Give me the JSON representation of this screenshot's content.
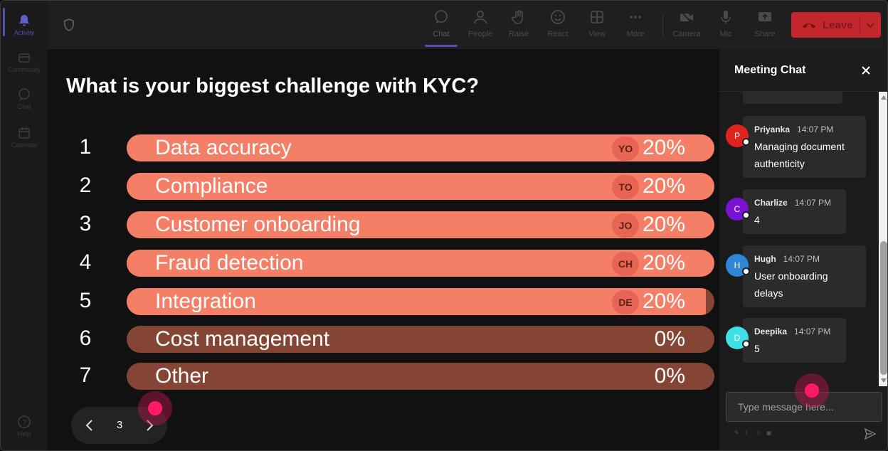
{
  "rail": {
    "items": [
      {
        "label": "Activity",
        "icon": "bell-icon"
      },
      {
        "label": "Community",
        "icon": "community-icon"
      },
      {
        "label": "Chat",
        "icon": "chat-icon"
      },
      {
        "label": "Calendar",
        "icon": "calendar-icon"
      }
    ],
    "help": {
      "label": "Help",
      "icon": "help-icon"
    }
  },
  "toolbar": {
    "buttons": [
      {
        "label": "Chat",
        "icon": "chat-icon"
      },
      {
        "label": "People",
        "icon": "people-icon"
      },
      {
        "label": "Raise",
        "icon": "hand-icon"
      },
      {
        "label": "React",
        "icon": "smiley-icon"
      },
      {
        "label": "View",
        "icon": "grid-icon"
      },
      {
        "label": "More",
        "icon": "more-icon"
      },
      {
        "label": "Camera",
        "icon": "camera-off-icon"
      },
      {
        "label": "Mic",
        "icon": "mic-icon"
      },
      {
        "label": "Share",
        "icon": "share-icon"
      }
    ],
    "leave_label": "Leave"
  },
  "poll": {
    "question": "What is your biggest challenge with KYC?",
    "options": [
      {
        "num": "1",
        "label": "Data accuracy",
        "avatar": "YO",
        "pct": "20%",
        "value": 1.0
      },
      {
        "num": "2",
        "label": "Compliance",
        "avatar": "TO",
        "pct": "20%",
        "value": 1.0
      },
      {
        "num": "3",
        "label": "Customer onboarding",
        "avatar": "JO",
        "pct": "20%",
        "value": 1.0
      },
      {
        "num": "4",
        "label": "Fraud detection",
        "avatar": "CH",
        "pct": "20%",
        "value": 1.0
      },
      {
        "num": "5",
        "label": "Integration",
        "avatar": "DE",
        "pct": "20%",
        "value": 0.985
      },
      {
        "num": "6",
        "label": "Cost management",
        "avatar": "",
        "pct": "0%",
        "value": 0
      },
      {
        "num": "7",
        "label": "Other",
        "avatar": "",
        "pct": "0%",
        "value": 0
      }
    ],
    "page": "3"
  },
  "chat": {
    "title": "Meeting Chat",
    "messages": [
      {
        "initial": "P",
        "color": "#e0231f",
        "name": "Priyanka",
        "time": "14:07 PM",
        "lines": [
          "Managing document",
          "authenticity"
        ]
      },
      {
        "initial": "C",
        "color": "#7a12d6",
        "name": "Charlize",
        "time": "14:07 PM",
        "lines": [
          "4"
        ]
      },
      {
        "initial": "H",
        "color": "#2f86d4",
        "name": "Hugh",
        "time": "14:07 PM",
        "lines": [
          "User onboarding",
          "delays"
        ]
      },
      {
        "initial": "D",
        "color": "#3ee0e6",
        "name": "Deepika",
        "time": "14:07 PM",
        "lines": [
          "5"
        ]
      }
    ],
    "input_placeholder": "Type message here..."
  }
}
